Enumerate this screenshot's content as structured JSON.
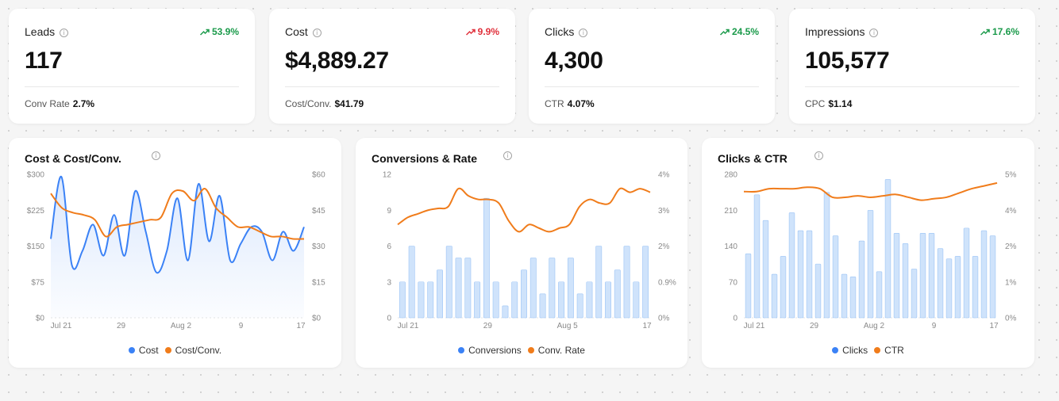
{
  "colors": {
    "blue": "#3b82f6",
    "orange": "#f07c1b",
    "green": "#1a9a4a",
    "red": "#e0303b",
    "bar_fill": "#cfe3fb"
  },
  "kpis": [
    {
      "label": "Leads",
      "trend": "53.9%",
      "trend_dir": "up-good",
      "value": "117",
      "sub_label": "Conv Rate",
      "sub_value": "2.7%"
    },
    {
      "label": "Cost",
      "trend": "9.9%",
      "trend_dir": "up-bad",
      "value": "$4,889.27",
      "sub_label": "Cost/Conv.",
      "sub_value": "$41.79"
    },
    {
      "label": "Clicks",
      "trend": "24.5%",
      "trend_dir": "up-good",
      "value": "4,300",
      "sub_label": "CTR",
      "sub_value": "4.07%"
    },
    {
      "label": "Impressions",
      "trend": "17.6%",
      "trend_dir": "up-good",
      "value": "105,577",
      "sub_label": "CPC",
      "sub_value": "$1.14"
    }
  ],
  "chart_data": [
    {
      "type": "line",
      "title": "Cost & Cost/Conv.",
      "x_ticks": [
        "Jul 21",
        "29",
        "Aug 2",
        "9",
        "17"
      ],
      "y_left_ticks": [
        "$0",
        "$75",
        "$150",
        "$225",
        "$300"
      ],
      "y_right_ticks": [
        "$0",
        "$15",
        "$30",
        "$45",
        "$60"
      ],
      "ylim_left": [
        0,
        300
      ],
      "ylim_right": [
        0,
        60
      ],
      "series": [
        {
          "name": "Cost",
          "axis": "left",
          "style": "area",
          "values": [
            165,
            295,
            110,
            140,
            195,
            130,
            215,
            130,
            265,
            180,
            95,
            140,
            250,
            120,
            280,
            160,
            255,
            120,
            155,
            190,
            180,
            120,
            180,
            140,
            190
          ]
        },
        {
          "name": "Cost/Conv.",
          "axis": "right",
          "style": "line",
          "values": [
            52,
            46,
            44,
            43,
            41,
            34,
            38,
            39,
            40,
            41,
            42,
            52,
            53,
            49,
            54,
            46,
            42,
            38,
            38,
            36,
            34,
            34,
            33,
            33
          ]
        }
      ],
      "legend": [
        "Cost",
        "Cost/Conv."
      ]
    },
    {
      "type": "bar",
      "title": "Conversions & Rate",
      "x_ticks": [
        "Jul 21",
        "29",
        "Aug 5",
        "17"
      ],
      "y_left_ticks": [
        "0",
        "3",
        "6",
        "9",
        "12"
      ],
      "y_right_ticks": [
        "0%",
        "0.9%",
        "1.8%",
        "2.7%",
        "3.6%"
      ],
      "y_right_labels_shown": [
        "0%",
        "0.9%",
        "2%",
        "3%",
        "4%"
      ],
      "ylim_left": [
        0,
        12
      ],
      "ylim_right": [
        0,
        4
      ],
      "series": [
        {
          "name": "Conversions",
          "axis": "left",
          "style": "bar",
          "values": [
            3,
            6,
            3,
            3,
            4,
            6,
            5,
            5,
            3,
            10,
            3,
            1,
            3,
            4,
            5,
            2,
            5,
            3,
            5,
            2,
            3,
            6,
            3,
            4,
            6,
            3,
            6
          ]
        },
        {
          "name": "Conv. Rate",
          "axis": "right",
          "style": "line",
          "values": [
            2.6,
            2.8,
            2.9,
            3.0,
            3.05,
            3.1,
            3.6,
            3.4,
            3.3,
            3.3,
            3.2,
            2.7,
            2.4,
            2.6,
            2.5,
            2.4,
            2.5,
            2.6,
            3.1,
            3.3,
            3.2,
            3.2,
            3.6,
            3.5,
            3.6,
            3.5
          ]
        }
      ],
      "legend": [
        "Conversions",
        "Conv. Rate"
      ]
    },
    {
      "type": "bar",
      "title": "Clicks & CTR",
      "x_ticks": [
        "Jul 21",
        "29",
        "Aug 2",
        "9",
        "17"
      ],
      "y_left_ticks": [
        "0",
        "70",
        "140",
        "210",
        "280"
      ],
      "y_right_ticks": [
        "0%",
        "1%",
        "2%",
        "4%",
        "5%"
      ],
      "ylim_left": [
        0,
        280
      ],
      "ylim_right": [
        0,
        5
      ],
      "series": [
        {
          "name": "Clicks",
          "axis": "left",
          "style": "bar",
          "values": [
            125,
            240,
            190,
            85,
            120,
            205,
            170,
            170,
            105,
            245,
            160,
            85,
            80,
            150,
            210,
            90,
            270,
            165,
            145,
            95,
            165,
            165,
            135,
            115,
            120,
            175,
            120,
            170,
            160
          ]
        },
        {
          "name": "CTR",
          "axis": "right",
          "style": "line",
          "values": [
            4.4,
            4.4,
            4.5,
            4.5,
            4.5,
            4.55,
            4.5,
            4.2,
            4.2,
            4.25,
            4.2,
            4.25,
            4.3,
            4.2,
            4.1,
            4.15,
            4.2,
            4.35,
            4.5,
            4.6,
            4.7
          ]
        }
      ],
      "legend": [
        "Clicks",
        "CTR"
      ]
    }
  ]
}
